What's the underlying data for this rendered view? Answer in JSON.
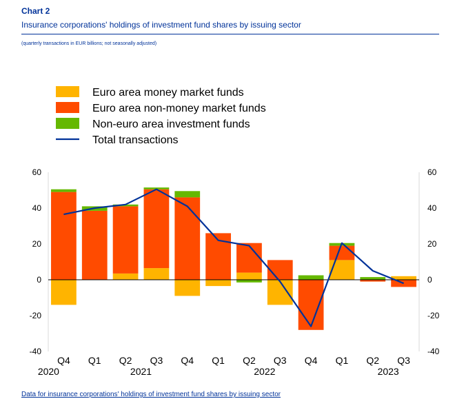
{
  "header": {
    "label": "Chart 2",
    "title": "Insurance corporations' holdings of investment fund shares by issuing sector",
    "subtitle": "(quarterly transactions in EUR billions; not seasonally adjusted)"
  },
  "footer": {
    "link_text": "Data for insurance corporations' holdings of investment fund shares by issuing sector"
  },
  "chart_data": {
    "type": "bar",
    "stacked": true,
    "legend_position": "top-left",
    "grid": false,
    "ylim": [
      -40,
      60
    ],
    "yticks": [
      60,
      40,
      20,
      0,
      -20,
      -40
    ],
    "categories": [
      "Q4",
      "Q1",
      "Q2",
      "Q3",
      "Q4",
      "Q1",
      "Q2",
      "Q3",
      "Q4",
      "Q1",
      "Q2",
      "Q3"
    ],
    "year_labels": [
      {
        "label": "2020",
        "index": 0
      },
      {
        "label": "2021",
        "index": 2.5
      },
      {
        "label": "2022",
        "index": 6.5
      },
      {
        "label": "2023",
        "index": 10.5
      }
    ],
    "series": [
      {
        "name": "Euro area money market funds",
        "kind": "bar",
        "color": "#FFB400",
        "values": [
          -14,
          0,
          3.5,
          6.5,
          -9,
          -3.5,
          4,
          -14,
          0,
          11,
          0,
          2
        ]
      },
      {
        "name": "Euro area non-money market funds",
        "kind": "bar",
        "color": "#FF4B00",
        "values": [
          49,
          38.5,
          37.5,
          44,
          46,
          26,
          16.5,
          11,
          -28,
          8,
          -1,
          -4
        ]
      },
      {
        "name": "Non-euro area investment funds",
        "kind": "bar",
        "color": "#65B800",
        "values": [
          1.5,
          2.5,
          1,
          1,
          3.5,
          0,
          -1.5,
          0,
          2.5,
          1.5,
          1.5,
          0
        ]
      },
      {
        "name": "Total transactions",
        "kind": "line",
        "color": "#003299",
        "values": [
          36.5,
          40,
          42,
          50.5,
          41,
          22,
          19,
          -1,
          -26,
          20.5,
          5,
          -2
        ]
      }
    ]
  }
}
